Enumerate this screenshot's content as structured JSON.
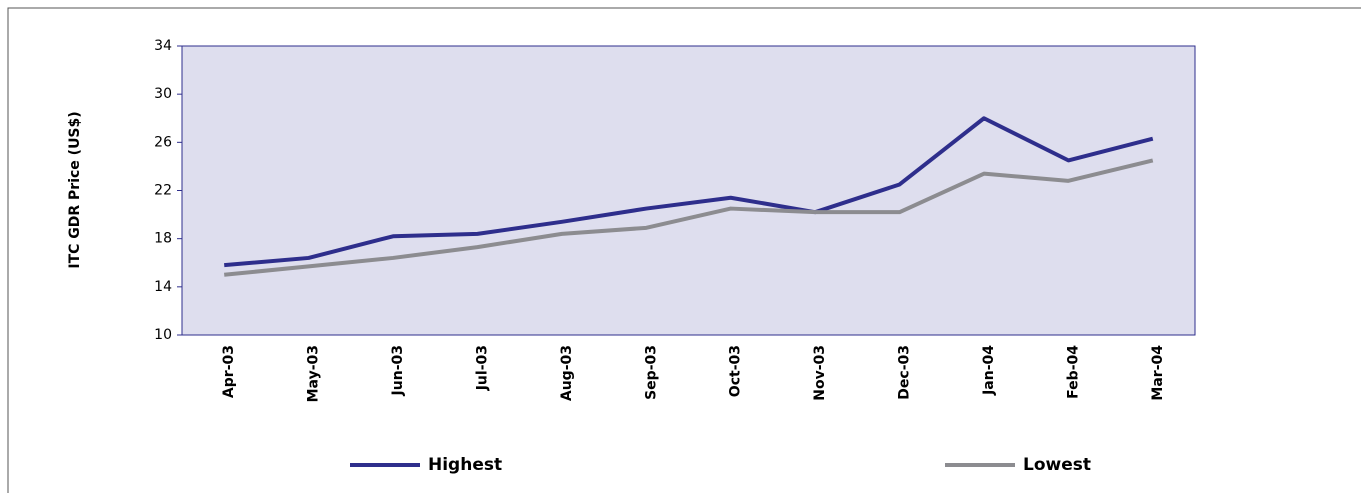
{
  "chart_data": {
    "type": "line",
    "y_label": "ITC GDR Price (US$)",
    "categories": [
      "Apr-03",
      "May-03",
      "Jun-03",
      "Jul-03",
      "Aug-03",
      "Sep-03",
      "Oct-03",
      "Nov-03",
      "Dec-03",
      "Jan-04",
      "Feb-04",
      "Mar-04"
    ],
    "series": [
      {
        "name": "Highest",
        "color": "#2e2e8c",
        "values": [
          15.8,
          16.4,
          18.2,
          18.4,
          19.4,
          20.5,
          21.4,
          20.2,
          22.5,
          28.0,
          24.5,
          26.3
        ]
      },
      {
        "name": "Lowest",
        "color": "#8c8c90",
        "values": [
          15.0,
          15.7,
          16.4,
          17.3,
          18.4,
          18.9,
          20.5,
          20.2,
          20.2,
          23.4,
          22.8,
          24.5
        ]
      }
    ],
    "ylim": [
      10,
      34
    ],
    "yticks": [
      10,
      14,
      18,
      22,
      26,
      30,
      34
    ],
    "grid": false,
    "plot_background": "#dedeee",
    "legend": "bottom"
  }
}
